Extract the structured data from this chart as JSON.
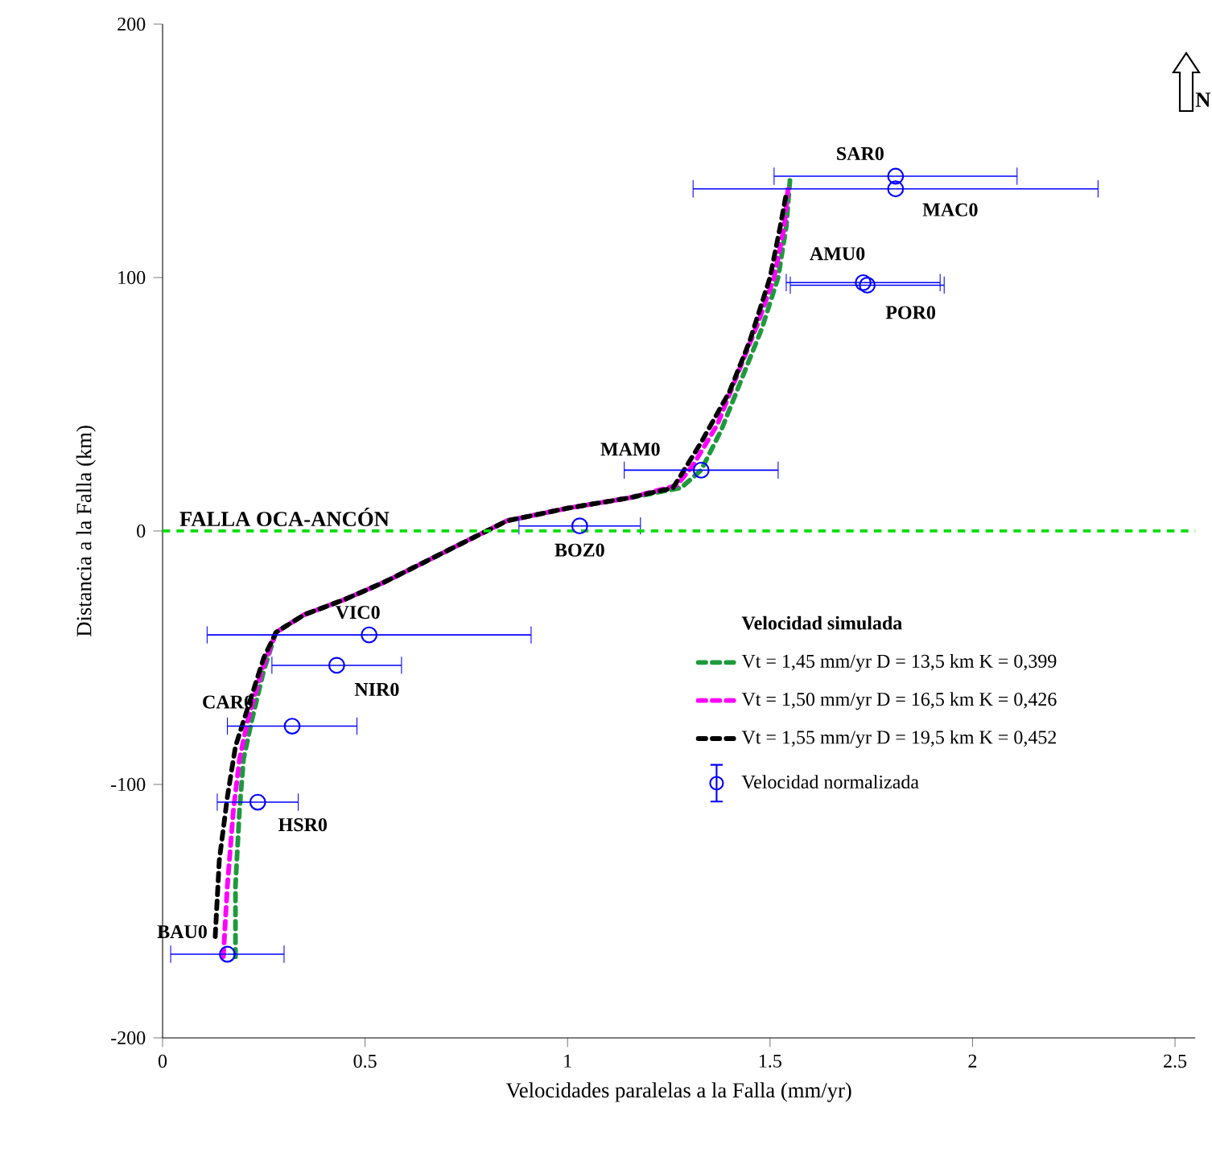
{
  "chart_data": {
    "type": "line",
    "xlabel": "Velocidades paralelas a la Falla (mm/yr)",
    "ylabel": "Distancia a la Falla (km)",
    "legend_title": "Velocidad simulada",
    "legend": "right",
    "line_style": "dashed",
    "xlim": [
      0,
      2.55
    ],
    "ylim": [
      -200,
      200
    ],
    "xticks": [
      0,
      0.5,
      1,
      1.5,
      2,
      2.5
    ],
    "yticks": [
      -200,
      -100,
      0,
      100,
      200
    ],
    "series": [
      {
        "name": "Vt = 1,45 mm/yr  D = 13,5 km  K = 0,399",
        "color": "#1e9a3c",
        "x": [
          0.18,
          0.18,
          0.19,
          0.2,
          0.22,
          0.25,
          0.28,
          0.35,
          0.45,
          0.55,
          0.65,
          0.75,
          0.85,
          1.0,
          1.15,
          1.28,
          1.33,
          1.38,
          1.43,
          1.48,
          1.52,
          1.54,
          1.55
        ],
        "values": [
          -168,
          -140,
          -110,
          -90,
          -75,
          -55,
          -40,
          -33,
          -27,
          -20,
          -12,
          -4,
          4,
          9,
          13,
          17,
          24,
          40,
          60,
          80,
          100,
          120,
          140
        ]
      },
      {
        "name": "Vt = 1,50 mm/yr  D = 16,5 km  K = 0,426",
        "color": "#ff00ff",
        "x": [
          0.15,
          0.16,
          0.175,
          0.19,
          0.21,
          0.245,
          0.28,
          0.35,
          0.45,
          0.55,
          0.65,
          0.75,
          0.85,
          1.0,
          1.15,
          1.27,
          1.31,
          1.37,
          1.42,
          1.47,
          1.51,
          1.535,
          1.545
        ],
        "values": [
          -168,
          -140,
          -110,
          -90,
          -75,
          -55,
          -40,
          -33,
          -27,
          -20,
          -12,
          -4,
          4,
          9,
          13,
          18,
          26,
          42,
          62,
          82,
          100,
          120,
          136
        ]
      },
      {
        "name": "Vt = 1,55 mm/yr  D = 19,5 km  K = 0,452",
        "color": "#000000",
        "x": [
          0.13,
          0.14,
          0.16,
          0.18,
          0.21,
          0.25,
          0.28,
          0.35,
          0.45,
          0.55,
          0.65,
          0.75,
          0.85,
          1.0,
          1.15,
          1.26,
          1.28,
          1.33,
          1.4,
          1.45,
          1.5,
          1.525,
          1.54
        ],
        "values": [
          -160,
          -130,
          -105,
          -85,
          -70,
          -50,
          -40,
          -33,
          -27,
          -20,
          -12,
          -4,
          4,
          9,
          13,
          17,
          22,
          35,
          55,
          75,
          100,
          120,
          133
        ]
      },
      {
        "name": "Velocidad normalizada",
        "type": "scatter",
        "marker": "circle",
        "color": "#0000ff",
        "x": [
          1.81,
          1.81,
          1.73,
          1.74,
          1.33,
          1.03,
          0.51,
          0.43,
          0.32,
          0.235,
          0.16
        ],
        "values": [
          140,
          135,
          98,
          97,
          24,
          2,
          -41,
          -53,
          -77,
          -107,
          -167
        ],
        "xerrors": [
          0.3,
          0.5,
          0.19,
          0.19,
          0.19,
          0.15,
          0.4,
          0.16,
          0.16,
          0.1,
          0.14
        ]
      }
    ],
    "ref_lines": [
      {
        "axis": "y",
        "value": 0,
        "label": "FALLA OCA-ANCÓN",
        "color": "#00dd00",
        "line_style": "dashed"
      }
    ],
    "annotations": [
      {
        "text": "SAR0",
        "x": 1.81,
        "y": 140
      },
      {
        "text": "MAC0",
        "x": 1.81,
        "y": 135
      },
      {
        "text": "AMU0",
        "x": 1.73,
        "y": 98
      },
      {
        "text": "POR0",
        "x": 1.74,
        "y": 97
      },
      {
        "text": "MAM0",
        "x": 1.33,
        "y": 24
      },
      {
        "text": "BOZ0",
        "x": 1.03,
        "y": 2
      },
      {
        "text": "VIC0",
        "x": 0.51,
        "y": -41
      },
      {
        "text": "NIR0",
        "x": 0.43,
        "y": -53
      },
      {
        "text": "CAR0",
        "x": 0.32,
        "y": -77
      },
      {
        "text": "HSR0",
        "x": 0.235,
        "y": -107
      },
      {
        "text": "BAU0",
        "x": 0.16,
        "y": -167
      },
      "N"
    ]
  }
}
